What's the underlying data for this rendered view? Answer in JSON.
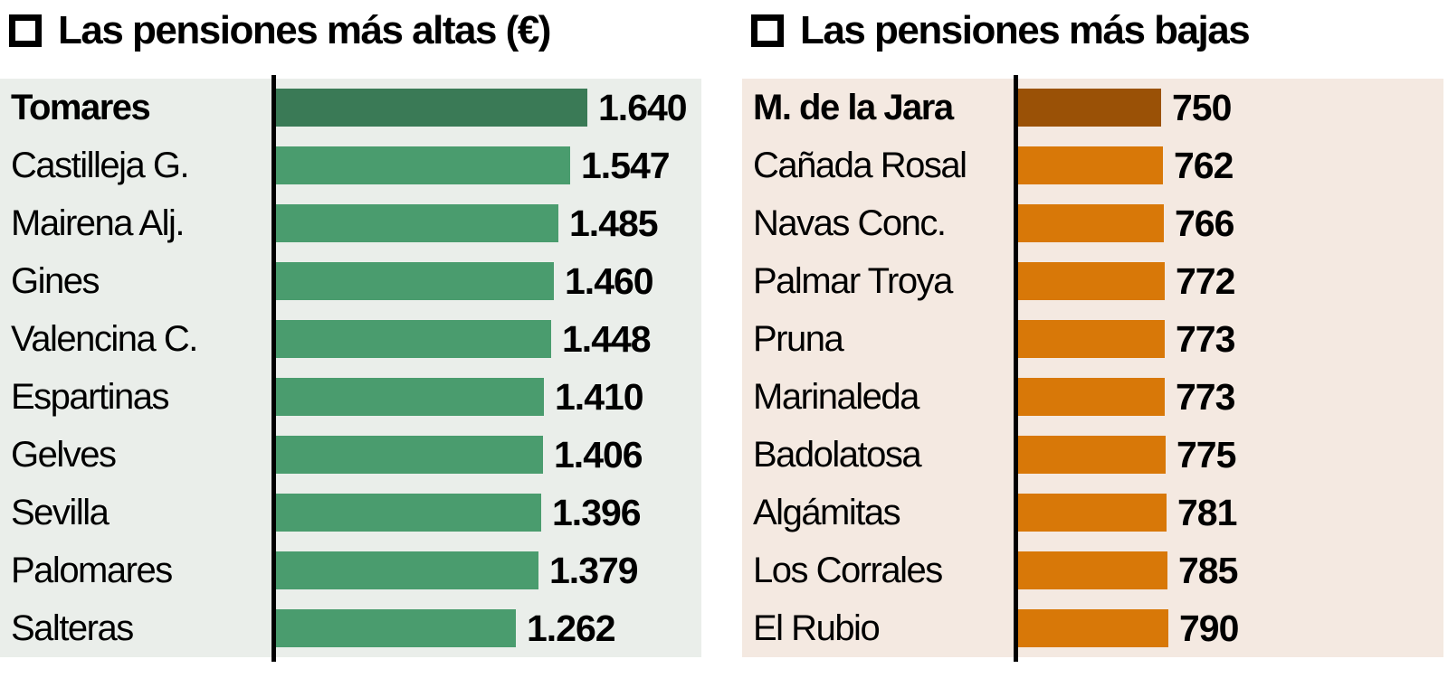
{
  "chart_data": [
    {
      "type": "bar",
      "orientation": "horizontal",
      "title": "Las pensiones más altas (€)",
      "categories": [
        "Tomares",
        "Castilleja G.",
        "Mairena Alj.",
        "Gines",
        "Valencina C.",
        "Espartinas",
        "Gelves",
        "Sevilla",
        "Palomares",
        "Salteras"
      ],
      "values": [
        1640,
        1547,
        1485,
        1460,
        1448,
        1410,
        1406,
        1396,
        1379,
        1262
      ],
      "value_labels": [
        "1.640",
        "1.547",
        "1.485",
        "1.460",
        "1.448",
        "1.410",
        "1.406",
        "1.396",
        "1.379",
        "1.262"
      ],
      "highlight_index": 0,
      "bar_color": "#4a9c6e",
      "highlight_bar_color": "#3a7a56",
      "panel_background": "#eaeeea",
      "axis_color": "#000000",
      "baseline": 0,
      "xlim": [
        0,
        1700
      ],
      "grid": false,
      "legend": "none"
    },
    {
      "type": "bar",
      "orientation": "horizontal",
      "title": "Las pensiones más bajas",
      "categories": [
        "M. de la Jara",
        "Cañada Rosal",
        "Navas Conc.",
        "Palmar Troya",
        "Pruna",
        "Marinaleda",
        "Badolatosa",
        "Algámitas",
        "Los Corrales",
        "El Rubio"
      ],
      "values": [
        750,
        762,
        766,
        772,
        773,
        773,
        775,
        781,
        785,
        790
      ],
      "value_labels": [
        "750",
        "762",
        "766",
        "772",
        "773",
        "773",
        "775",
        "781",
        "785",
        "790"
      ],
      "highlight_index": 0,
      "bar_color": "#d87808",
      "highlight_bar_color": "#9a5106",
      "panel_background": "#f4e9e1",
      "axis_color": "#000000",
      "baseline": 0,
      "xlim": [
        0,
        1700
      ],
      "grid": false,
      "legend": "none"
    }
  ]
}
